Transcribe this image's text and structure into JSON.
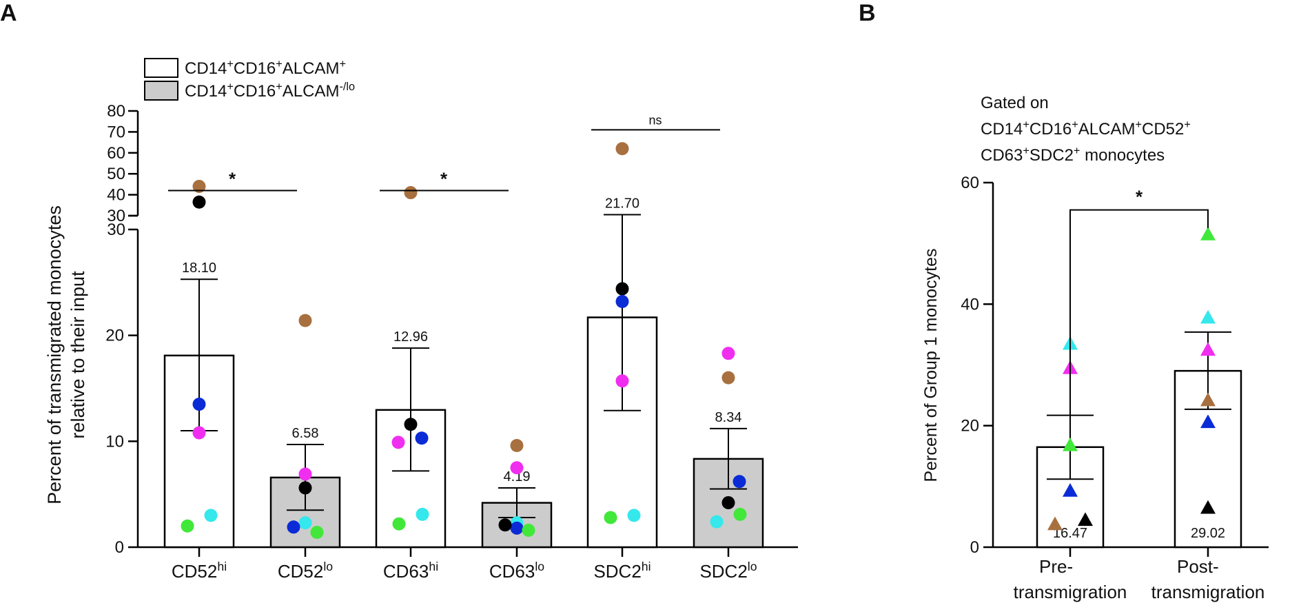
{
  "panel_labels": {
    "a": "A",
    "b": "B"
  },
  "colors": {
    "brown": "#a8703f",
    "black": "#000000",
    "blue": "#0a2bd6",
    "magenta": "#f02ef0",
    "green": "#41e83a",
    "cyan": "#34e8ec",
    "gray_bar": "#cccccc",
    "white_bar": "#ffffff"
  },
  "chart_data": [
    {
      "id": "A",
      "type": "bar",
      "title": "",
      "ylabel_lines": [
        "Percent of transmigrated monocytes",
        "relative to their input"
      ],
      "categories": [
        {
          "base": "CD52",
          "sup": "hi"
        },
        {
          "base": "CD52",
          "sup": "lo"
        },
        {
          "base": "CD63",
          "sup": "hi"
        },
        {
          "base": "CD63",
          "sup": "lo"
        },
        {
          "base": "SDC2",
          "sup": "hi"
        },
        {
          "base": "SDC2",
          "sup": "lo"
        }
      ],
      "groups": [
        "ALCAM+",
        "ALCAM-/lo",
        "ALCAM+",
        "ALCAM-/lo",
        "ALCAM+",
        "ALCAM-/lo"
      ],
      "means": [
        18.1,
        6.58,
        12.96,
        4.19,
        21.7,
        8.34
      ],
      "mean_labels": [
        "18.10",
        "6.58",
        "12.96",
        "4.19",
        "21.70",
        "8.34"
      ],
      "sem_low": [
        11.0,
        3.5,
        7.2,
        2.8,
        12.9,
        5.5
      ],
      "sem_high": [
        25.3,
        9.7,
        18.8,
        5.6,
        30.5,
        11.2
      ],
      "points": [
        [
          {
            "c": "brown",
            "y": 44
          },
          {
            "c": "black",
            "y": 36.5
          },
          {
            "c": "blue",
            "y": 13.5
          },
          {
            "c": "magenta",
            "y": 10.8
          },
          {
            "c": "green",
            "y": 2.0
          },
          {
            "c": "cyan",
            "y": 3.0
          }
        ],
        [
          {
            "c": "brown",
            "y": 21.4
          },
          {
            "c": "magenta",
            "y": 6.9
          },
          {
            "c": "black",
            "y": 5.6
          },
          {
            "c": "cyan",
            "y": 2.3
          },
          {
            "c": "blue",
            "y": 1.9
          },
          {
            "c": "green",
            "y": 1.4
          }
        ],
        [
          {
            "c": "brown",
            "y": 41
          },
          {
            "c": "black",
            "y": 11.6
          },
          {
            "c": "blue",
            "y": 10.3
          },
          {
            "c": "magenta",
            "y": 9.9
          },
          {
            "c": "green",
            "y": 2.2
          },
          {
            "c": "cyan",
            "y": 3.1
          }
        ],
        [
          {
            "c": "brown",
            "y": 9.6
          },
          {
            "c": "magenta",
            "y": 7.5
          },
          {
            "c": "cyan",
            "y": 2.3
          },
          {
            "c": "blue",
            "y": 1.8
          },
          {
            "c": "black",
            "y": 2.1
          },
          {
            "c": "green",
            "y": 1.6
          }
        ],
        [
          {
            "c": "brown",
            "y": 62
          },
          {
            "c": "black",
            "y": 24.4
          },
          {
            "c": "blue",
            "y": 23.2
          },
          {
            "c": "magenta",
            "y": 15.7
          },
          {
            "c": "green",
            "y": 2.8
          },
          {
            "c": "cyan",
            "y": 3.0
          }
        ],
        [
          {
            "c": "magenta",
            "y": 18.3
          },
          {
            "c": "brown",
            "y": 16.0
          },
          {
            "c": "blue",
            "y": 6.2
          },
          {
            "c": "black",
            "y": 4.2
          },
          {
            "c": "cyan",
            "y": 2.4
          },
          {
            "c": "green",
            "y": 3.1
          }
        ]
      ],
      "y_lower_ticks": [
        "0",
        "10",
        "20",
        "30"
      ],
      "y_lower_tick_values": [
        0,
        10,
        20,
        30
      ],
      "y_upper_ticks": [
        "30",
        "40",
        "50",
        "60",
        "70",
        "80"
      ],
      "y_upper_tick_values": [
        30,
        40,
        50,
        60,
        70,
        80
      ],
      "ylim_lower": [
        0,
        30
      ],
      "ylim_upper": [
        30,
        80
      ],
      "legend": [
        {
          "base": "CD14",
          "sup1": "+",
          "mid": "CD16",
          "sup2": "+",
          "tail": "ALCAM",
          "sup3": "+",
          "fill": "white"
        },
        {
          "base": "CD14",
          "sup1": "+",
          "mid": "CD16",
          "sup2": "+",
          "tail": "ALCAM",
          "sup3": "-/lo",
          "fill": "gray"
        }
      ],
      "significance": [
        {
          "from": 0,
          "to": 1,
          "label": "*",
          "y": 42
        },
        {
          "from": 2,
          "to": 3,
          "label": "*",
          "y": 42
        },
        {
          "from": 4,
          "to": 5,
          "label": "ns",
          "y": 71
        }
      ]
    },
    {
      "id": "B",
      "type": "bar",
      "title_lines": [
        {
          "parts": [
            {
              "t": "Gated on"
            }
          ]
        },
        {
          "parts": [
            {
              "t": "CD14"
            },
            {
              "s": "+"
            },
            {
              "t": "CD16"
            },
            {
              "s": "+"
            },
            {
              "t": "ALCAM"
            },
            {
              "s": "+"
            },
            {
              "t": "CD52"
            },
            {
              "s": "+"
            }
          ]
        },
        {
          "parts": [
            {
              "t": "CD63"
            },
            {
              "s": "+"
            },
            {
              "t": "SDC2"
            },
            {
              "s": "+"
            },
            {
              "t": " monocytes"
            }
          ]
        }
      ],
      "ylabel": "Percent of Group 1 monocytes",
      "categories": [
        [
          "Pre-",
          "transmigration"
        ],
        [
          "Post-",
          "transmigration"
        ]
      ],
      "means": [
        16.47,
        29.02
      ],
      "mean_labels": [
        "16.47",
        "29.02"
      ],
      "sem_low": [
        11.2,
        22.7
      ],
      "sem_high": [
        21.7,
        35.4
      ],
      "points": [
        [
          {
            "c": "cyan",
            "y": 33.5
          },
          {
            "c": "magenta",
            "y": 29.5
          },
          {
            "c": "green",
            "y": 16.8
          },
          {
            "c": "blue",
            "y": 9.3
          },
          {
            "c": "brown",
            "y": 3.8
          },
          {
            "c": "black",
            "y": 4.5
          }
        ],
        [
          {
            "c": "green",
            "y": 51.5
          },
          {
            "c": "cyan",
            "y": 37.8
          },
          {
            "c": "magenta",
            "y": 32.5
          },
          {
            "c": "brown",
            "y": 24.2
          },
          {
            "c": "blue",
            "y": 20.6
          },
          {
            "c": "black",
            "y": 6.5
          }
        ]
      ],
      "y_ticks": [
        "0",
        "20",
        "40",
        "60"
      ],
      "y_tick_values": [
        0,
        20,
        40,
        60
      ],
      "ylim": [
        0,
        60
      ],
      "significance": {
        "label": "*",
        "y": 55.5
      }
    }
  ]
}
